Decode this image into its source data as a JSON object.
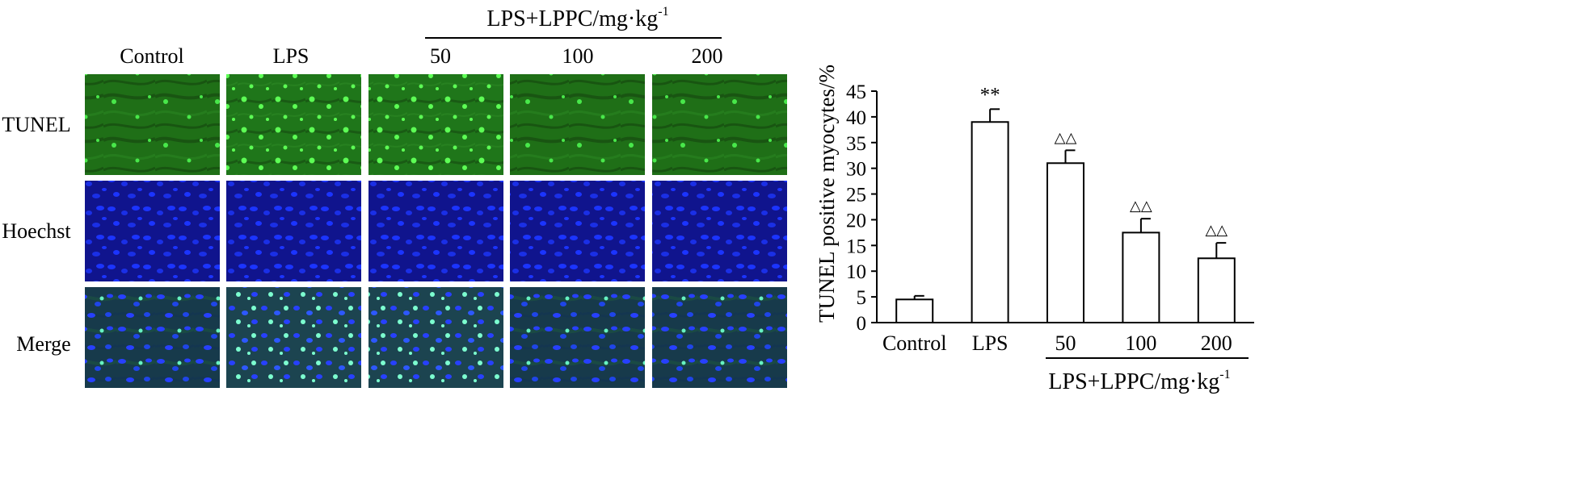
{
  "left_panel": {
    "group_header": {
      "label": "LPS+LPPC/mg·kg",
      "superscript": "-1"
    },
    "columns": [
      "Control",
      "LPS",
      "50",
      "100",
      "200"
    ],
    "rows": [
      "TUNEL",
      "Hoechst",
      "Merge"
    ],
    "colors": {
      "tunel_bg": "#1f6f17",
      "tunel_bright": "#48e84a",
      "hoechst_bg": "#10148d",
      "hoechst_bright": "#1b34ff",
      "merge_bg": "#173a4b",
      "merge_bright": "#66f2c2",
      "separator": "#ffffff"
    }
  },
  "chart_data": {
    "type": "bar",
    "categories": [
      "Control",
      "LPS",
      "50",
      "100",
      "200"
    ],
    "values": [
      4.5,
      39,
      31,
      17.5,
      12.5
    ],
    "errors": [
      0.7,
      2.5,
      2.5,
      2.7,
      3
    ],
    "significance": [
      "",
      "**",
      "△△",
      "△△",
      "△△"
    ],
    "title": "",
    "xlabel": "",
    "ylabel": "TUNEL positive myocytes/%",
    "ylim": [
      0,
      45
    ],
    "yticks": [
      0,
      5,
      10,
      15,
      20,
      25,
      30,
      35,
      40,
      45
    ],
    "grid": false,
    "group_label": {
      "label": "LPS+LPPC/mg·kg",
      "superscript": "-1",
      "covers": [
        "50",
        "100",
        "200"
      ]
    }
  }
}
